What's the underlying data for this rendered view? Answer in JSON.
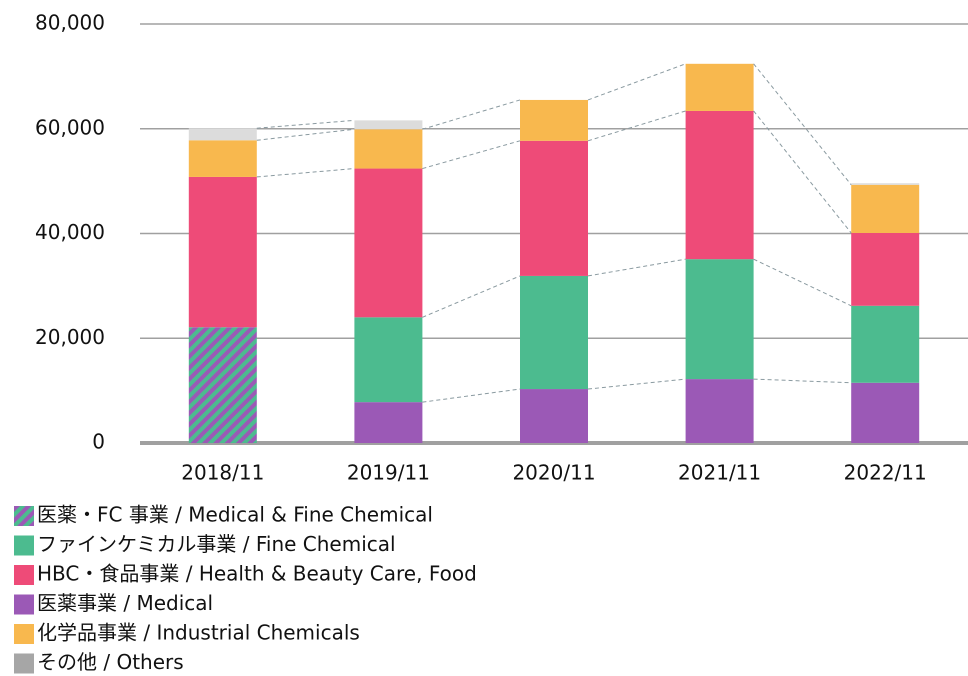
{
  "chart_data": {
    "type": "stacked_bar",
    "categories": [
      "2018/11",
      "2019/11",
      "2020/11",
      "2021/11",
      "2022/11"
    ],
    "series": [
      {
        "name": "医薬・FC 事業 / Medical & Fine Chemical",
        "color": "#4cbb8f",
        "hatch_color": "#9b59b6",
        "values": [
          22100,
          null,
          null,
          null,
          null
        ]
      },
      {
        "name": "医薬事業 / Medical",
        "color": "#9b59b6",
        "values": [
          null,
          7800,
          10300,
          12200,
          11500
        ]
      },
      {
        "name": "ファインケミカル事業 / Fine Chemical",
        "color": "#4cbb8f",
        "values": [
          null,
          16200,
          21600,
          22900,
          14700
        ]
      },
      {
        "name": "HBC・食品事業 / Health & Beauty Care, Food",
        "color": "#ee4b78",
        "values": [
          28700,
          28400,
          25800,
          28300,
          13900
        ]
      },
      {
        "name": "化学品事業 / Industrial Chemicals",
        "color": "#f8b84e",
        "values": [
          7000,
          7500,
          7800,
          9000,
          9200
        ]
      },
      {
        "name": "その他 / Others",
        "color": "#dcdcdc",
        "legend_color": "#a6a6a6",
        "values": [
          2300,
          1700,
          null,
          null,
          300
        ]
      }
    ],
    "legend_order": [
      0,
      2,
      3,
      1,
      4,
      5
    ],
    "ylim": [
      0,
      80000
    ],
    "yticks": [
      {
        "value": 0,
        "label": "0"
      },
      {
        "value": 20000,
        "label": "20,000"
      },
      {
        "value": 40000,
        "label": "40,000"
      },
      {
        "value": 60000,
        "label": "60,000"
      },
      {
        "value": 80000,
        "label": "80,000"
      }
    ],
    "grid": true
  }
}
